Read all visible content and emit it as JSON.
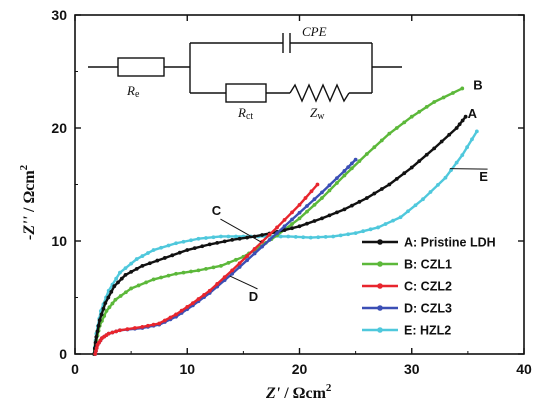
{
  "chart_data": {
    "type": "line",
    "xlabel_main": "Z'",
    "xlabel_unit": " / Ωcm",
    "xlabel_sup": "2",
    "ylabel_main": "-Z''",
    "ylabel_unit": " / Ωcm",
    "ylabel_sup": "2",
    "xlim": [
      0,
      40
    ],
    "ylim": [
      0,
      30
    ],
    "xticks": [
      "0",
      "10",
      "20",
      "30",
      "40"
    ],
    "yticks": [
      "0",
      "10",
      "20",
      "30"
    ],
    "grid": false,
    "legend_position": "right",
    "series": [
      {
        "name": "A: Pristine LDH",
        "letter": "A",
        "color": "#111111",
        "points": [
          [
            1.7,
            0
          ],
          [
            1.9,
            1.5
          ],
          [
            2.2,
            3
          ],
          [
            2.7,
            4.5
          ],
          [
            3.5,
            6
          ],
          [
            4.5,
            7
          ],
          [
            6,
            7.8
          ],
          [
            8,
            8.5
          ],
          [
            10,
            9.2
          ],
          [
            12,
            9.7
          ],
          [
            14,
            10.1
          ],
          [
            16,
            10.4
          ],
          [
            18,
            10.8
          ],
          [
            20,
            11.3
          ],
          [
            22,
            12
          ],
          [
            24,
            12.8
          ],
          [
            26,
            13.8
          ],
          [
            28,
            15
          ],
          [
            30,
            16.5
          ],
          [
            32,
            18.2
          ],
          [
            34,
            20
          ],
          [
            34.8,
            21
          ]
        ]
      },
      {
        "name": "B: CZL1",
        "letter": "B",
        "color": "#5cb83a",
        "points": [
          [
            1.7,
            0
          ],
          [
            1.9,
            1.2
          ],
          [
            2.2,
            2.5
          ],
          [
            2.8,
            3.8
          ],
          [
            3.6,
            4.8
          ],
          [
            5,
            5.8
          ],
          [
            7,
            6.6
          ],
          [
            9,
            7.1
          ],
          [
            11,
            7.4
          ],
          [
            13,
            7.8
          ],
          [
            15,
            8.6
          ],
          [
            16.5,
            9.5
          ],
          [
            18,
            10.5
          ],
          [
            20,
            12
          ],
          [
            22,
            13.8
          ],
          [
            24,
            15.8
          ],
          [
            26,
            17.7
          ],
          [
            28,
            19.5
          ],
          [
            30,
            21
          ],
          [
            32,
            22.3
          ],
          [
            34.5,
            23.5
          ]
        ]
      },
      {
        "name": "C: CZL2",
        "letter": "C",
        "color": "#e8252d",
        "points": [
          [
            1.8,
            0
          ],
          [
            2,
            0.8
          ],
          [
            2.4,
            1.4
          ],
          [
            3,
            1.8
          ],
          [
            4,
            2.1
          ],
          [
            6,
            2.4
          ],
          [
            7.5,
            2.7
          ],
          [
            9,
            3.5
          ],
          [
            10.5,
            4.5
          ],
          [
            12,
            5.6
          ],
          [
            14,
            7.4
          ],
          [
            16,
            9.3
          ],
          [
            18,
            11.2
          ],
          [
            20,
            13.2
          ],
          [
            21.6,
            15
          ]
        ]
      },
      {
        "name": "D: CZL3",
        "letter": "D",
        "color": "#3b4fb5",
        "points": [
          [
            1.8,
            0
          ],
          [
            2,
            0.8
          ],
          [
            2.4,
            1.4
          ],
          [
            3,
            1.8
          ],
          [
            4,
            2.1
          ],
          [
            6,
            2.3
          ],
          [
            7.5,
            2.6
          ],
          [
            9,
            3.3
          ],
          [
            10.5,
            4.3
          ],
          [
            12,
            5.4
          ],
          [
            14,
            7.1
          ],
          [
            16,
            8.9
          ],
          [
            18,
            10.7
          ],
          [
            20,
            12.5
          ],
          [
            22,
            14.3
          ],
          [
            24,
            16.2
          ],
          [
            25,
            17.2
          ]
        ]
      },
      {
        "name": "E: HZL2",
        "letter": "E",
        "color": "#4fc8dc",
        "points": [
          [
            1.7,
            0
          ],
          [
            1.9,
            1.8
          ],
          [
            2.3,
            3.8
          ],
          [
            3,
            5.6
          ],
          [
            4,
            7.2
          ],
          [
            5.5,
            8.4
          ],
          [
            7,
            9.2
          ],
          [
            9,
            9.8
          ],
          [
            11,
            10.2
          ],
          [
            13,
            10.4
          ],
          [
            15,
            10.4
          ],
          [
            17,
            10.4
          ],
          [
            19,
            10.4
          ],
          [
            21,
            10.3
          ],
          [
            23,
            10.4
          ],
          [
            25,
            10.7
          ],
          [
            27,
            11.2
          ],
          [
            29,
            12.1
          ],
          [
            31,
            13.7
          ],
          [
            33,
            15.6
          ],
          [
            34.5,
            17.6
          ],
          [
            35.8,
            19.7
          ]
        ]
      }
    ],
    "annotations": [
      {
        "label": "C",
        "x": 12.6,
        "y": 12.3,
        "target_series": 2,
        "target": [
          16.6,
          9.9
        ]
      },
      {
        "label": "D",
        "x": 15.9,
        "y": 4.7,
        "target_series": 3,
        "target": [
          13.8,
          6.9
        ]
      },
      {
        "label": "E",
        "x": 36.4,
        "y": 15.3,
        "target_series": 4,
        "target": [
          33.4,
          16.4
        ]
      },
      {
        "label": "A",
        "x": 35.4,
        "y": 20.9,
        "target_series": 0,
        "target": null
      },
      {
        "label": "B",
        "x": 35.9,
        "y": 23.4,
        "target_series": 1,
        "target": null
      }
    ],
    "inset_circuit": {
      "Re": {
        "main": "R",
        "sub": "e"
      },
      "Rct": {
        "main": "R",
        "sub": "ct"
      },
      "Zw": {
        "main": "Z",
        "sub": "w"
      },
      "CPE": "CPE"
    }
  }
}
